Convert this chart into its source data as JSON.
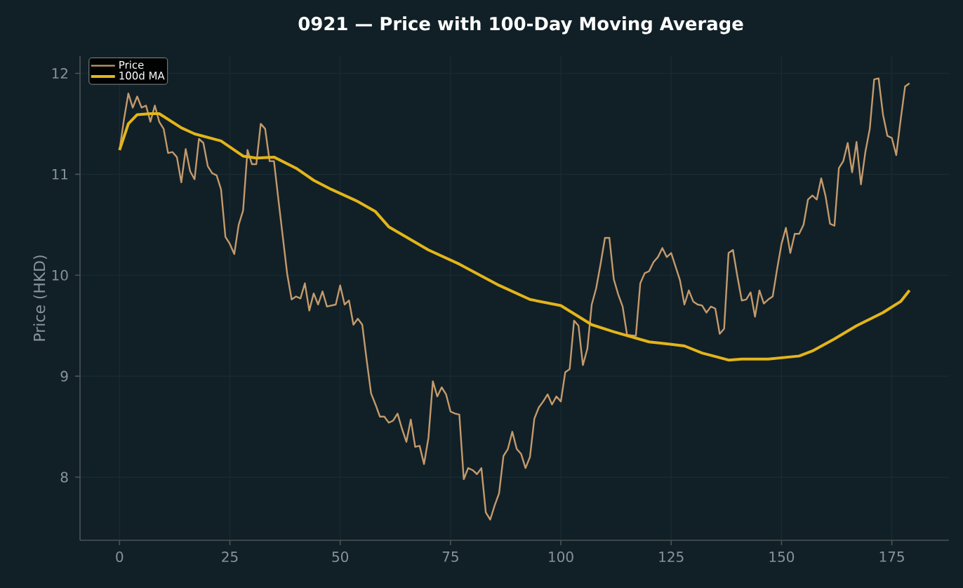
{
  "chart_data": {
    "type": "line",
    "title": "0921 — Price with 100-Day Moving Average",
    "ylabel": "Price (HKD)",
    "xlim": [
      -8.95,
      187.95
    ],
    "ylim": [
      7.375,
      12.17
    ],
    "xticks": [
      0,
      25,
      50,
      75,
      100,
      125,
      150,
      175
    ],
    "yticks": [
      8,
      9,
      10,
      11,
      12
    ],
    "grid": true,
    "legend": "top left",
    "marker": "none",
    "line_style": "solid",
    "series": [
      {
        "name": "Price",
        "color": "#c49a6c",
        "x": [
          0,
          1,
          2,
          3,
          4,
          5,
          6,
          7,
          8,
          9,
          10,
          11,
          12,
          13,
          14,
          15,
          16,
          17,
          18,
          19,
          20,
          21,
          22,
          23,
          24,
          25,
          26,
          27,
          28,
          29,
          30,
          31,
          32,
          33,
          34,
          35,
          36,
          38,
          39,
          40,
          41,
          42,
          43,
          44,
          45,
          46,
          47,
          49,
          50,
          51,
          52,
          53,
          54,
          55,
          56,
          57,
          58,
          59,
          60,
          61,
          62,
          63,
          64,
          65,
          66,
          67,
          68,
          69,
          70,
          71,
          72,
          73,
          74,
          75,
          76,
          77,
          78,
          79,
          80,
          81,
          82,
          83,
          84,
          85,
          86,
          87,
          88,
          89,
          90,
          91,
          92,
          93,
          94,
          95,
          96,
          97,
          98,
          99,
          100,
          101,
          102,
          103,
          104,
          105,
          106,
          107,
          108,
          109,
          110,
          111,
          112,
          113,
          114,
          115,
          117,
          118,
          119,
          120,
          121,
          122,
          123,
          124,
          125,
          127,
          128,
          129,
          130,
          131,
          132,
          133,
          134,
          135,
          136,
          137,
          138,
          139,
          140,
          141,
          142,
          143,
          144,
          145,
          146,
          147,
          148,
          149,
          150,
          151,
          152,
          153,
          154,
          155,
          156,
          157,
          158,
          159,
          160,
          161,
          162,
          163,
          164,
          165,
          166,
          167,
          168,
          169,
          170,
          171,
          172,
          173,
          174,
          175,
          176,
          177,
          178,
          179
        ],
        "values": [
          11.24,
          11.54,
          11.8,
          11.66,
          11.77,
          11.66,
          11.68,
          11.52,
          11.68,
          11.52,
          11.45,
          11.21,
          11.22,
          11.17,
          10.92,
          11.25,
          11.03,
          10.95,
          11.35,
          11.31,
          11.08,
          11.01,
          10.99,
          10.85,
          10.38,
          10.31,
          10.21,
          10.5,
          10.64,
          11.24,
          11.1,
          11.1,
          11.5,
          11.45,
          11.13,
          11.13,
          10.75,
          10.01,
          9.76,
          9.79,
          9.77,
          9.92,
          9.65,
          9.82,
          9.71,
          9.84,
          9.69,
          9.71,
          9.9,
          9.71,
          9.75,
          9.51,
          9.57,
          9.51,
          9.16,
          8.83,
          8.72,
          8.6,
          8.6,
          8.54,
          8.56,
          8.63,
          8.48,
          8.35,
          8.57,
          8.3,
          8.31,
          8.13,
          8.39,
          8.95,
          8.8,
          8.89,
          8.82,
          8.65,
          8.63,
          8.62,
          7.98,
          8.09,
          8.07,
          8.03,
          8.09,
          7.65,
          7.58,
          7.72,
          7.84,
          8.21,
          8.28,
          8.45,
          8.28,
          8.23,
          8.09,
          8.2,
          8.58,
          8.69,
          8.75,
          8.82,
          8.72,
          8.8,
          8.75,
          9.04,
          9.07,
          9.55,
          9.5,
          9.11,
          9.27,
          9.71,
          9.87,
          10.11,
          10.37,
          10.37,
          9.96,
          9.81,
          9.69,
          9.41,
          9.4,
          9.92,
          10.02,
          10.04,
          10.13,
          10.18,
          10.27,
          10.18,
          10.22,
          9.95,
          9.71,
          9.85,
          9.74,
          9.71,
          9.7,
          9.63,
          9.69,
          9.67,
          9.42,
          9.47,
          10.22,
          10.25,
          9.99,
          9.75,
          9.76,
          9.83,
          9.59,
          9.85,
          9.72,
          9.76,
          9.79,
          10.06,
          10.31,
          10.47,
          10.22,
          10.41,
          10.41,
          10.5,
          10.75,
          10.79,
          10.75,
          10.96,
          10.78,
          10.51,
          10.49,
          11.06,
          11.13,
          11.31,
          11.02,
          11.32,
          10.9,
          11.22,
          11.45,
          11.94,
          11.95,
          11.59,
          11.38,
          11.36,
          11.19,
          11.54,
          11.87,
          11.9
        ]
      },
      {
        "name": "100d MA",
        "color": "#e3b51a",
        "x": [
          0,
          2,
          4,
          7,
          9,
          14,
          17,
          23,
          28,
          31,
          35,
          40,
          44,
          48,
          54,
          58,
          61,
          70,
          77,
          86,
          93,
          100,
          107,
          112,
          120,
          124,
          128,
          132,
          138,
          141,
          147,
          154,
          157,
          162,
          167,
          173,
          177,
          179
        ],
        "values": [
          11.24,
          11.5,
          11.59,
          11.6,
          11.6,
          11.46,
          11.4,
          11.33,
          11.18,
          11.16,
          11.17,
          11.06,
          10.94,
          10.85,
          10.73,
          10.63,
          10.48,
          10.25,
          10.11,
          9.9,
          9.76,
          9.7,
          9.51,
          9.44,
          9.34,
          9.32,
          9.3,
          9.23,
          9.16,
          9.17,
          9.17,
          9.2,
          9.25,
          9.37,
          9.5,
          9.63,
          9.74,
          9.85
        ]
      }
    ]
  }
}
